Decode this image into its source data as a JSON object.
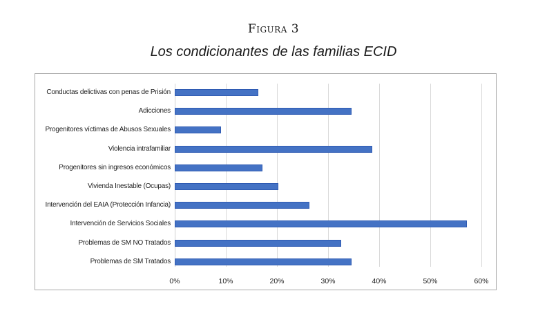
{
  "figure": {
    "label": "Figura 3",
    "title": "Los condicionantes de las familias ECID"
  },
  "chart_data": {
    "type": "bar",
    "orientation": "horizontal",
    "title": "Los condicionantes de las familias ECID",
    "categories": [
      "Conductas delictivas con penas de Prisión",
      "Adicciones",
      "Progenitores víctimas de Abusos Sexuales",
      "Violencia intrafamiliar",
      "Progenitores sin ingresos económicos",
      "Vivienda Inestable (Ocupas)",
      "Intervención del EAIA (Protección Infancia)",
      "Intervención de Servicios Sociales",
      "Problemas de SM NO Tratados",
      "Problemas de SM Tratados"
    ],
    "values": [
      16.3,
      34.6,
      9.1,
      38.7,
      17.2,
      20.3,
      26.4,
      57.1,
      32.6,
      34.6
    ],
    "value_unit": "%",
    "xlabel": "",
    "ylabel": "",
    "xlim": [
      0,
      60
    ],
    "x_ticks": [
      "0%",
      "10%",
      "20%",
      "30%",
      "40%",
      "50%",
      "60%"
    ],
    "grid": true,
    "legend": "none",
    "bar_color": "#4472c4"
  }
}
